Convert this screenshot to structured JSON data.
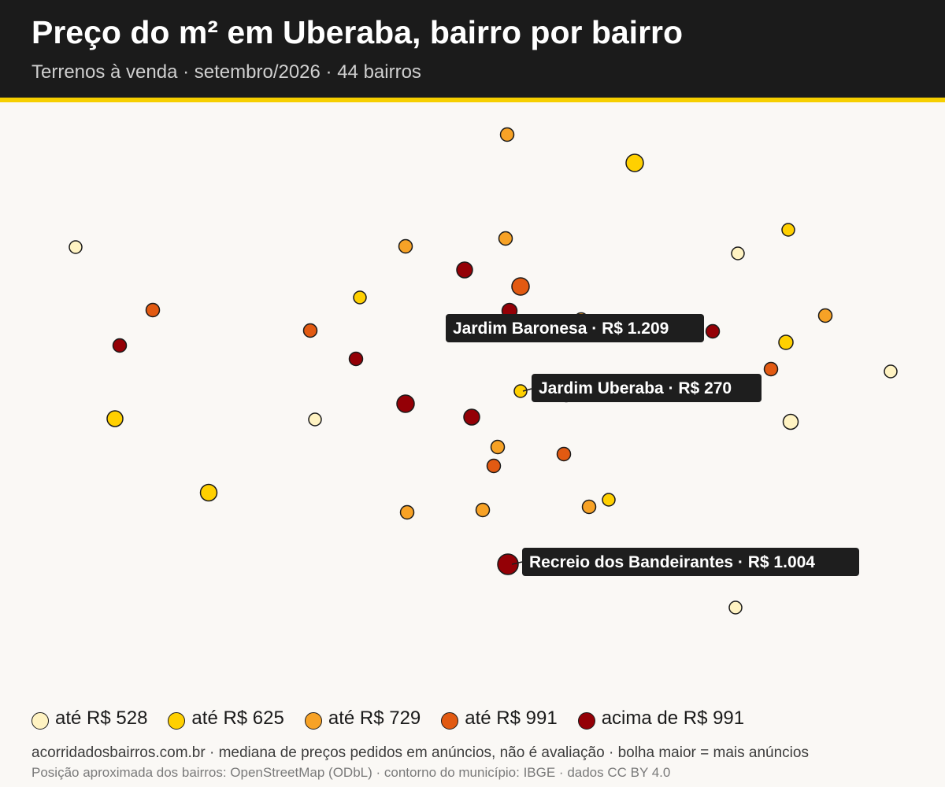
{
  "header": {
    "title": "Preço do m² em Uberaba, bairro por bairro",
    "subtitle": "Terrenos à venda · setembro/2026 · 44 bairros"
  },
  "colors": {
    "header_bg": "#1b1b1b",
    "accent_rule": "#f6cf00",
    "background": "#faf8f5",
    "callout_bg": "#1e1e1e"
  },
  "legend": [
    {
      "label": "até R$ 528",
      "color": "#fff3c2"
    },
    {
      "label": "até R$ 625",
      "color": "#ffd000"
    },
    {
      "label": "até R$ 729",
      "color": "#f7a226"
    },
    {
      "label": "até R$ 991",
      "color": "#e25a12"
    },
    {
      "label": "acima de R$ 991",
      "color": "#940006"
    }
  ],
  "callouts": [
    {
      "label": "Jardim Baronesa · R$ 1.209"
    },
    {
      "label": "Jardim Uberaba · R$ 270"
    },
    {
      "label": "Recreio dos Bandeirantes · R$ 1.004"
    }
  ],
  "footer": {
    "line1": "acorridadosbairros.com.br · mediana de preços pedidos em anúncios, não é avaliação · bolha maior = mais anúncios",
    "line2": "Posição aproximada dos bairros: OpenStreetMap (ODbL) · contorno do município: IBGE · dados CC BY 4.0"
  }
}
